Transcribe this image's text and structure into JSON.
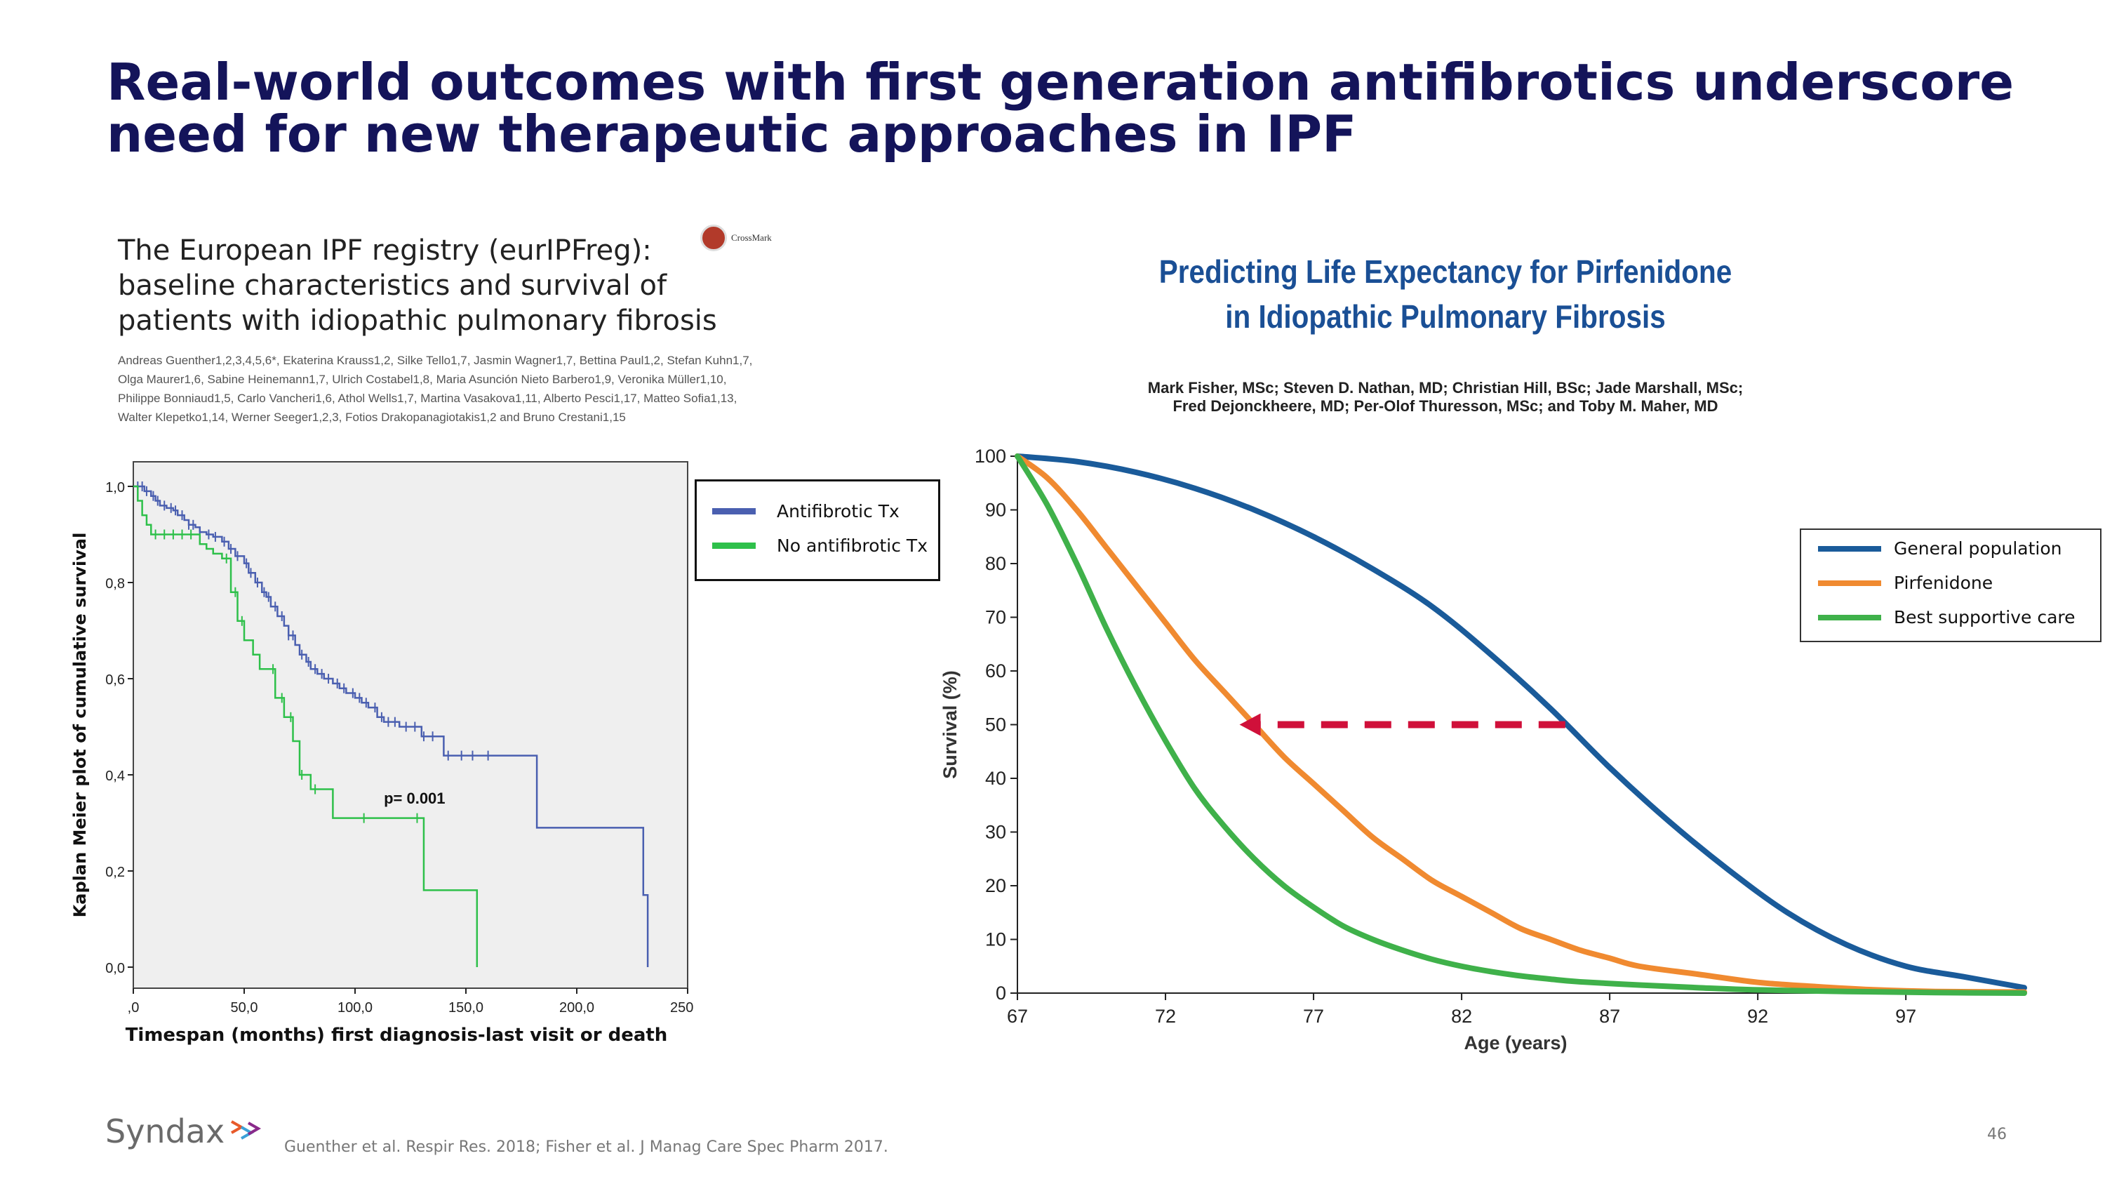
{
  "slide": {
    "title": "Real-world outcomes with first generation antifibrotics underscore need for new therapeutic approaches in IPF",
    "citation": "Guenther et al. Respir Res. 2018; Fisher et al. J Manag Care Spec Pharm 2017.",
    "page_number": "46",
    "logo_text": "Syndax"
  },
  "left_paper": {
    "title_lines": [
      "The European IPF registry (eurIPFreg):",
      "baseline characteristics and survival of",
      "patients with idiopathic pulmonary fibrosis"
    ],
    "author_lines": [
      "Andreas Guenther1,2,3,4,5,6*, Ekaterina Krauss1,2, Silke Tello1,7, Jasmin Wagner1,7, Bettina Paul1,2, Stefan Kuhn1,7,",
      "Olga Maurer1,6, Sabine Heinemann1,7, Ulrich Costabel1,8, Maria Asunción Nieto Barbero1,9, Veronika Müller1,10,",
      "Philippe Bonniaud1,5, Carlo Vancheri1,6, Athol Wells1,7, Martina Vasakova1,11, Alberto Pesci1,17, Matteo Sofia1,13,",
      "Walter Klepetko1,14, Werner Seeger1,2,3, Fotios Drakopanagiotakis1,2 and Bruno Crestani1,15"
    ],
    "crossmark_label": "CrossMark"
  },
  "right_paper": {
    "title_lines": [
      "Predicting Life Expectancy for Pirfenidone",
      "in Idiopathic Pulmonary Fibrosis"
    ],
    "author_lines": [
      "Mark Fisher, MSc; Steven D. Nathan, MD; Christian Hill, BSc; Jade Marshall, MSc;",
      "Fred Dejonckheere, MD; Per-Olof Thuresson, MSc; and Toby M. Maher, MD"
    ]
  },
  "chart_data": [
    {
      "type": "line",
      "step": true,
      "xlabel": "Timespan (months) first diagnosis-last visit or death",
      "ylabel": "Kaplan Meier plot of cumulative survival",
      "xlim": [
        0,
        250
      ],
      "ylim": [
        0,
        1.0
      ],
      "xticks": [
        0,
        50,
        100,
        150,
        200,
        250
      ],
      "xtick_labels": [
        ",0",
        "50,0",
        "100,0",
        "150,0",
        "200,0",
        "250,0"
      ],
      "yticks": [
        0,
        0.2,
        0.4,
        0.6,
        0.8,
        1.0
      ],
      "ytick_labels": [
        "0,0",
        "0,2",
        "0,4",
        "0,6",
        "0,8",
        "1,0"
      ],
      "annotation": "p= 0.001",
      "background": "#efefef",
      "legend_position": "outside-top-right",
      "series": [
        {
          "name": "Antifibrotic Tx",
          "color": "#4a5fb0",
          "x": [
            0,
            3,
            5,
            8,
            10,
            12,
            15,
            18,
            20,
            23,
            25,
            28,
            30,
            33,
            36,
            40,
            43,
            46,
            50,
            52,
            55,
            58,
            60,
            62,
            65,
            68,
            70,
            73,
            75,
            78,
            80,
            83,
            86,
            90,
            93,
            96,
            100,
            103,
            106,
            110,
            113,
            116,
            120,
            130,
            140,
            150,
            165,
            182,
            230,
            232
          ],
          "y": [
            1.0,
            1.0,
            0.99,
            0.98,
            0.97,
            0.96,
            0.955,
            0.95,
            0.94,
            0.93,
            0.92,
            0.915,
            0.905,
            0.9,
            0.895,
            0.885,
            0.87,
            0.855,
            0.84,
            0.82,
            0.8,
            0.78,
            0.77,
            0.75,
            0.73,
            0.71,
            0.69,
            0.67,
            0.65,
            0.635,
            0.62,
            0.61,
            0.6,
            0.59,
            0.58,
            0.57,
            0.56,
            0.55,
            0.54,
            0.52,
            0.51,
            0.51,
            0.5,
            0.48,
            0.44,
            0.44,
            0.44,
            0.29,
            0.15,
            0.0
          ],
          "censor_x": [
            2,
            4,
            6,
            9,
            11,
            14,
            17,
            19,
            22,
            25,
            27,
            30,
            34,
            37,
            41,
            44,
            47,
            51,
            53,
            56,
            59,
            61,
            64,
            67,
            70,
            72,
            76,
            79,
            82,
            85,
            88,
            92,
            95,
            99,
            102,
            105,
            109,
            112,
            115,
            118,
            123,
            127,
            131,
            135,
            142,
            148,
            153,
            160
          ]
        },
        {
          "name": "No antifibrotic Tx",
          "color": "#2ec04a",
          "x": [
            0,
            2,
            4,
            6,
            8,
            30,
            33,
            36,
            40,
            44,
            47,
            50,
            54,
            57,
            60,
            64,
            68,
            72,
            75,
            80,
            90,
            130,
            131,
            155
          ],
          "y": [
            1.0,
            0.97,
            0.94,
            0.92,
            0.9,
            0.88,
            0.87,
            0.86,
            0.85,
            0.78,
            0.72,
            0.68,
            0.65,
            0.62,
            0.62,
            0.56,
            0.52,
            0.47,
            0.4,
            0.37,
            0.31,
            0.31,
            0.16,
            0.0
          ],
          "censor_x": [
            10,
            14,
            18,
            22,
            26,
            42,
            46,
            49,
            63,
            67,
            71,
            76,
            82,
            104,
            128
          ]
        }
      ]
    },
    {
      "type": "line",
      "xlabel": "Age (years)",
      "ylabel": "Survival (%)",
      "xlim": [
        67,
        101
      ],
      "ylim": [
        0,
        100
      ],
      "xticks": [
        67,
        72,
        77,
        82,
        87,
        92,
        97
      ],
      "yticks": [
        0,
        10,
        20,
        30,
        40,
        50,
        60,
        70,
        80,
        90,
        100
      ],
      "legend_position": "outside-top-right",
      "arrow": {
        "from": [
          85.5,
          50
        ],
        "to": [
          74.5,
          50
        ],
        "color": "#d0103a",
        "style": "dashed"
      },
      "series": [
        {
          "name": "General population",
          "color": "#1a5b9a",
          "x": [
            67,
            69,
            71,
            73,
            75,
            77,
            79,
            81,
            83,
            85,
            87,
            89,
            91,
            93,
            95,
            97,
            99,
            101
          ],
          "y": [
            100,
            99,
            97,
            94,
            90,
            85,
            79,
            72,
            63,
            53,
            42,
            32,
            23,
            15,
            9,
            5,
            3,
            1
          ]
        },
        {
          "name": "Pirfenidone",
          "color": "#f08a30",
          "x": [
            67,
            68,
            69,
            70,
            71,
            72,
            73,
            74,
            75,
            76,
            77,
            78,
            79,
            80,
            81,
            82,
            83,
            84,
            85,
            86,
            87,
            88,
            90,
            92,
            94,
            96,
            98,
            101
          ],
          "y": [
            100,
            96,
            90,
            83,
            76,
            69,
            62,
            56,
            50,
            44,
            39,
            34,
            29,
            25,
            21,
            18,
            15,
            12,
            10,
            8,
            6.5,
            5,
            3.5,
            2,
            1.2,
            0.6,
            0.3,
            0.2
          ]
        },
        {
          "name": "Best supportive care",
          "color": "#3fb14a",
          "x": [
            67,
            68,
            69,
            70,
            71,
            72,
            73,
            74,
            75,
            76,
            77,
            78,
            79,
            80,
            81,
            82,
            83,
            84,
            85,
            86,
            88,
            90,
            92,
            95,
            98,
            101
          ],
          "y": [
            100,
            91,
            80,
            68,
            57,
            47,
            38,
            31,
            25,
            20,
            16,
            12.5,
            10,
            8,
            6.3,
            5,
            4,
            3.2,
            2.6,
            2.1,
            1.5,
            1,
            0.6,
            0.3,
            0.1,
            0
          ]
        }
      ]
    }
  ]
}
